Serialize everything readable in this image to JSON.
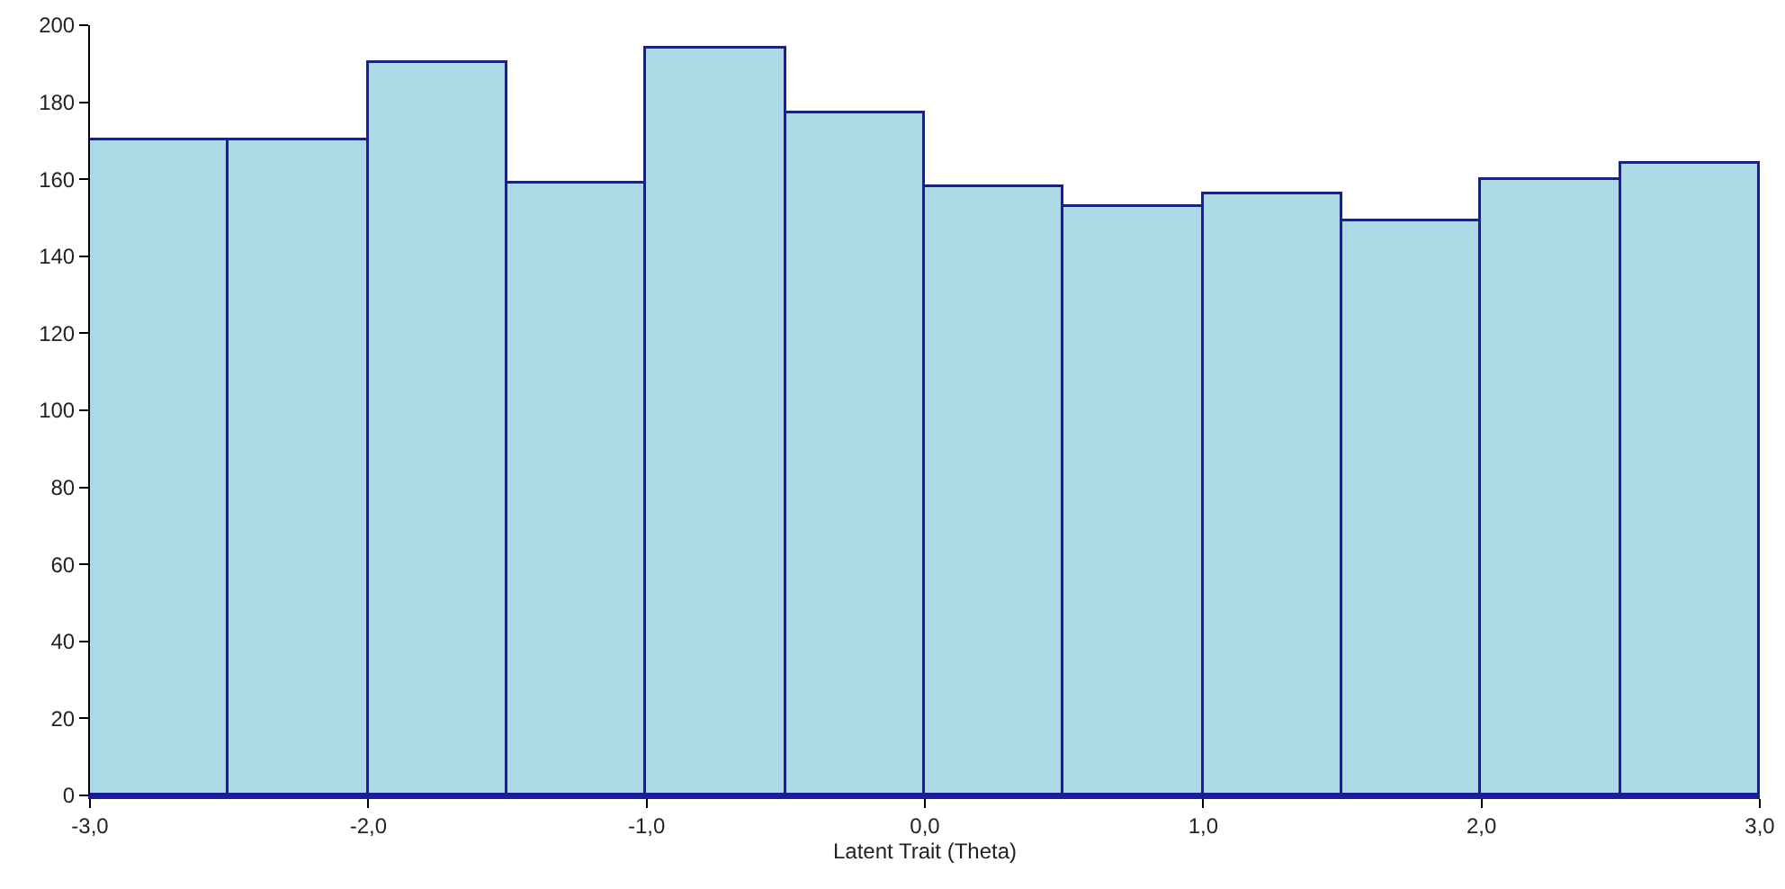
{
  "chart_data": {
    "type": "histogram",
    "xlabel": "Latent Trait (Theta)",
    "bins": [
      -3,
      -2.5,
      -2,
      -1.5,
      -1,
      -0.5,
      0,
      0.5,
      1,
      1.5,
      2,
      2.5,
      3
    ],
    "values": [
      170,
      170,
      190,
      159,
      194,
      177,
      158,
      153,
      156,
      149,
      160,
      164
    ],
    "color": "#add8e6",
    "xlim": [
      -3,
      3
    ],
    "xticks": [
      {
        "value": -3,
        "label": "-3,0"
      },
      {
        "value": -2,
        "label": "-2,0"
      },
      {
        "value": -1,
        "label": "-1,0"
      },
      {
        "value": 0,
        "label": "0,0"
      },
      {
        "value": 1,
        "label": "1,0"
      },
      {
        "value": 2,
        "label": "2,0"
      },
      {
        "value": 3,
        "label": "3,0"
      }
    ],
    "ylim": [
      0,
      200
    ],
    "yticks": [
      0,
      20,
      40,
      60,
      80,
      100,
      120,
      140,
      160,
      180,
      200
    ],
    "grid": false,
    "legend": false
  }
}
